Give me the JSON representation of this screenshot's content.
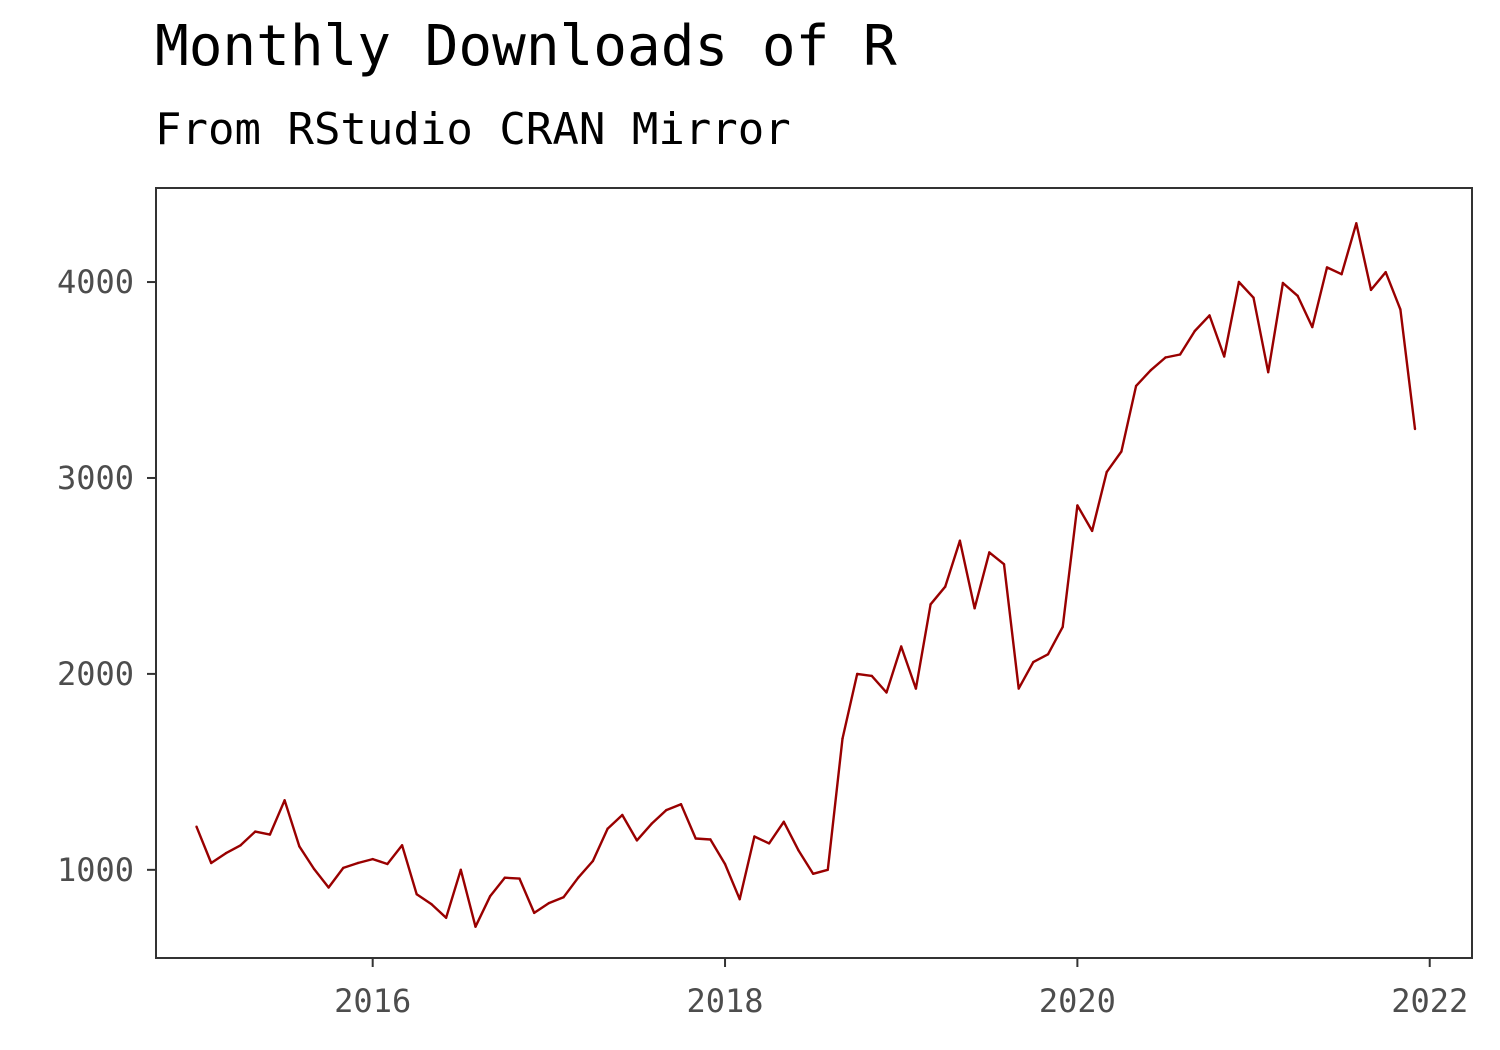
{
  "chart_data": {
    "type": "line",
    "title": "Monthly Downloads of R",
    "subtitle": "From RStudio CRAN Mirror",
    "xlabel": "",
    "ylabel": "",
    "x_ticks": [
      2016,
      2018,
      2020,
      2022
    ],
    "y_ticks": [
      1000,
      2000,
      3000,
      4000
    ],
    "xlim": [
      2014.77,
      2022.24
    ],
    "ylim": [
      550,
      4480
    ],
    "grid": false,
    "line_color": "#990000",
    "series": [
      {
        "x": [
          "2015-01",
          "2015-02",
          "2015-03",
          "2015-04",
          "2015-05",
          "2015-06",
          "2015-07",
          "2015-08",
          "2015-09",
          "2015-10",
          "2015-11",
          "2015-12",
          "2016-01",
          "2016-02",
          "2016-03",
          "2016-04",
          "2016-05",
          "2016-06",
          "2016-07",
          "2016-08",
          "2016-09",
          "2016-10",
          "2016-11",
          "2016-12",
          "2017-01",
          "2017-02",
          "2017-03",
          "2017-04",
          "2017-05",
          "2017-06",
          "2017-07",
          "2017-08",
          "2017-09",
          "2017-10",
          "2017-11",
          "2017-12",
          "2018-01",
          "2018-02",
          "2018-03",
          "2018-04",
          "2018-05",
          "2018-06",
          "2018-07",
          "2018-08",
          "2018-09",
          "2018-10",
          "2018-11",
          "2018-12",
          "2019-01",
          "2019-02",
          "2019-03",
          "2019-04",
          "2019-05",
          "2019-06",
          "2019-07",
          "2019-08",
          "2019-09",
          "2019-10",
          "2019-11",
          "2019-12",
          "2020-01",
          "2020-02",
          "2020-03",
          "2020-04",
          "2020-05",
          "2020-06",
          "2020-07",
          "2020-08",
          "2020-09",
          "2020-10",
          "2020-11",
          "2020-12",
          "2021-01",
          "2021-02",
          "2021-03",
          "2021-04",
          "2021-05",
          "2021-06",
          "2021-07",
          "2021-08",
          "2021-09",
          "2021-10",
          "2021-11",
          "2021-12"
        ],
        "values": [
          1220,
          1035,
          1085,
          1125,
          1195,
          1180,
          1355,
          1120,
          1005,
          910,
          1010,
          1035,
          1055,
          1030,
          1125,
          875,
          825,
          755,
          1000,
          710,
          865,
          960,
          955,
          780,
          830,
          860,
          960,
          1045,
          1210,
          1280,
          1150,
          1235,
          1305,
          1335,
          1160,
          1155,
          1030,
          850,
          1170,
          1135,
          1245,
          1100,
          980,
          1000,
          1670,
          2000,
          1990,
          1905,
          2140,
          1925,
          2355,
          2445,
          2680,
          2335,
          2620,
          2560,
          1925,
          2060,
          2100,
          2240,
          2860,
          2730,
          3030,
          3135,
          3470,
          3550,
          3615,
          3630,
          3750,
          3830,
          3620,
          4000,
          3920,
          3540,
          3995,
          3930,
          3770,
          4075,
          4040,
          4300,
          3960,
          4050,
          3860,
          3250
        ]
      }
    ]
  }
}
